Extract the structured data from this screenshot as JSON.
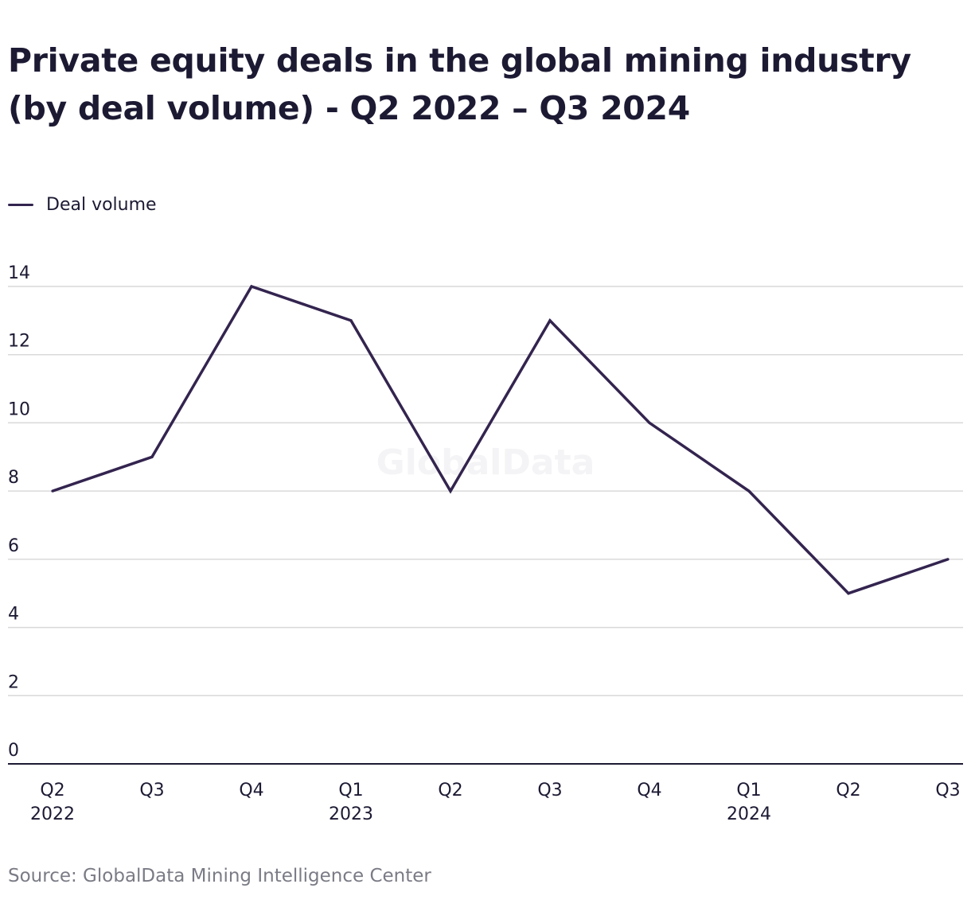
{
  "title_line1": "Private equity deals in the global mining industry",
  "title_line2": "(by deal volume) - Q2 2022 – Q3 2024",
  "source": "Source: GlobalData Mining Intelligence Center",
  "watermark": "GlobalData",
  "colors": {
    "series": "#33244f",
    "grid": "#d9d9d9",
    "axis": "#1c1a33",
    "text": "#1c1a33",
    "source_text": "#7a7b85"
  },
  "chart_data": {
    "type": "line",
    "title": "Private equity deals in the global mining industry (by deal volume) - Q2 2022 – Q3 2024",
    "categories": [
      [
        "Q2",
        "2022"
      ],
      [
        "Q3",
        ""
      ],
      [
        "Q4",
        ""
      ],
      [
        "Q1",
        "2023"
      ],
      [
        "Q2",
        ""
      ],
      [
        "Q3",
        ""
      ],
      [
        "Q4",
        ""
      ],
      [
        "Q1",
        "2024"
      ],
      [
        "Q2",
        ""
      ],
      [
        "Q3",
        ""
      ]
    ],
    "series": [
      {
        "name": "Deal volume",
        "values": [
          8,
          9,
          14,
          13,
          8,
          13,
          10,
          8,
          5,
          6
        ]
      }
    ],
    "y_ticks": [
      0,
      2,
      4,
      6,
      8,
      10,
      12,
      14
    ],
    "ylim": [
      0,
      14
    ],
    "grid": true,
    "legend_position": "top-left"
  }
}
